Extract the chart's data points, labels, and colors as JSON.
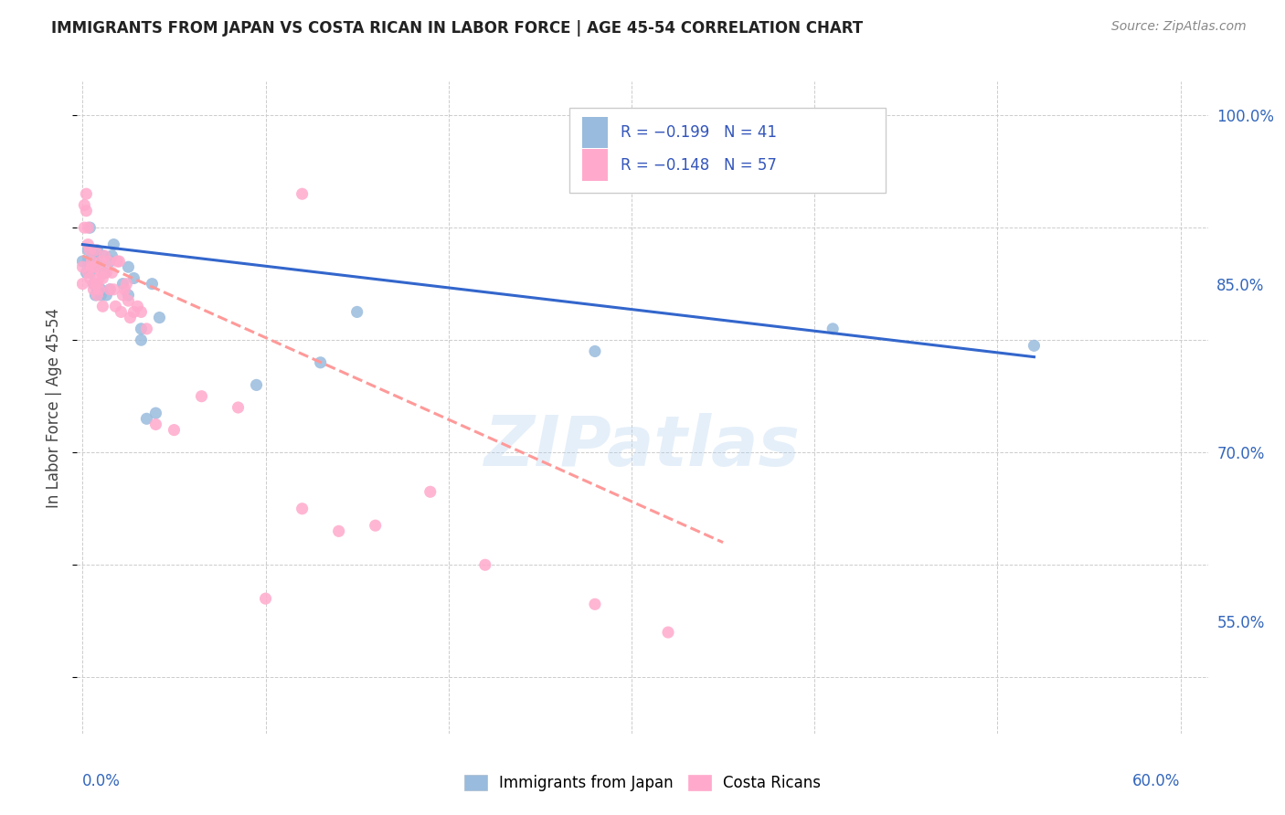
{
  "title": "IMMIGRANTS FROM JAPAN VS COSTA RICAN IN LABOR FORCE | AGE 45-54 CORRELATION CHART",
  "source": "Source: ZipAtlas.com",
  "ylabel": "In Labor Force | Age 45-54",
  "legend_blue_r": "R = −0.199",
  "legend_blue_n": "N = 41",
  "legend_pink_r": "R = −0.148",
  "legend_pink_n": "N = 57",
  "blue_color": "#99BBDD",
  "pink_color": "#FFAACC",
  "blue_line_color": "#3366CC",
  "pink_line_color": "#FF9999",
  "watermark": "ZIPatlas",
  "ymin": 45.0,
  "ymax": 103.0,
  "xmin": -0.003,
  "xmax": 0.615,
  "ytick_positions": [
    55.0,
    70.0,
    85.0,
    100.0
  ],
  "ytick_labels": [
    "55.0%",
    "70.0%",
    "85.0%",
    "100.0%"
  ],
  "blue_scatter_x": [
    0.0,
    0.002,
    0.003,
    0.003,
    0.004,
    0.004,
    0.005,
    0.005,
    0.006,
    0.006,
    0.007,
    0.007,
    0.008,
    0.008,
    0.009,
    0.009,
    0.01,
    0.01,
    0.011,
    0.012,
    0.013,
    0.015,
    0.015,
    0.016,
    0.017,
    0.022,
    0.025,
    0.025,
    0.028,
    0.032,
    0.032,
    0.035,
    0.038,
    0.04,
    0.042,
    0.095,
    0.13,
    0.15,
    0.28,
    0.41,
    0.52
  ],
  "blue_scatter_y": [
    87.0,
    86.0,
    88.0,
    87.0,
    86.0,
    90.0,
    86.5,
    88.0,
    86.5,
    85.0,
    87.5,
    84.0,
    88.0,
    84.5,
    87.0,
    87.0,
    84.0,
    84.5,
    87.5,
    86.0,
    84.0,
    87.0,
    84.5,
    87.5,
    88.5,
    85.0,
    84.0,
    86.5,
    85.5,
    80.0,
    81.0,
    73.0,
    85.0,
    73.5,
    82.0,
    76.0,
    78.0,
    82.5,
    79.0,
    81.0,
    79.5
  ],
  "pink_scatter_x": [
    0.0,
    0.0,
    0.001,
    0.001,
    0.002,
    0.002,
    0.003,
    0.003,
    0.003,
    0.004,
    0.004,
    0.005,
    0.005,
    0.006,
    0.006,
    0.007,
    0.007,
    0.008,
    0.008,
    0.009,
    0.009,
    0.01,
    0.01,
    0.011,
    0.011,
    0.012,
    0.013,
    0.014,
    0.015,
    0.016,
    0.017,
    0.018,
    0.019,
    0.02,
    0.021,
    0.022,
    0.023,
    0.024,
    0.025,
    0.026,
    0.028,
    0.03,
    0.032,
    0.035,
    0.04,
    0.05,
    0.065,
    0.085,
    0.1,
    0.12,
    0.14,
    0.16,
    0.19,
    0.22,
    0.28,
    0.32,
    0.12
  ],
  "pink_scatter_y": [
    86.5,
    85.0,
    92.0,
    90.0,
    93.0,
    91.5,
    90.0,
    88.5,
    86.0,
    88.0,
    85.5,
    87.0,
    86.5,
    85.0,
    84.5,
    88.0,
    86.5,
    85.0,
    84.0,
    85.5,
    84.5,
    87.0,
    86.0,
    85.5,
    83.0,
    87.5,
    86.0,
    87.0,
    84.5,
    86.0,
    84.5,
    83.0,
    87.0,
    87.0,
    82.5,
    84.0,
    84.5,
    85.0,
    83.5,
    82.0,
    82.5,
    83.0,
    82.5,
    81.0,
    72.5,
    72.0,
    75.0,
    74.0,
    57.0,
    65.0,
    63.0,
    63.5,
    66.5,
    60.0,
    56.5,
    54.0,
    93.0
  ],
  "blue_trend_x": [
    0.0,
    0.52
  ],
  "blue_trend_y": [
    88.5,
    78.5
  ],
  "pink_trend_x": [
    0.0,
    0.35
  ],
  "pink_trend_y": [
    87.5,
    62.0
  ]
}
